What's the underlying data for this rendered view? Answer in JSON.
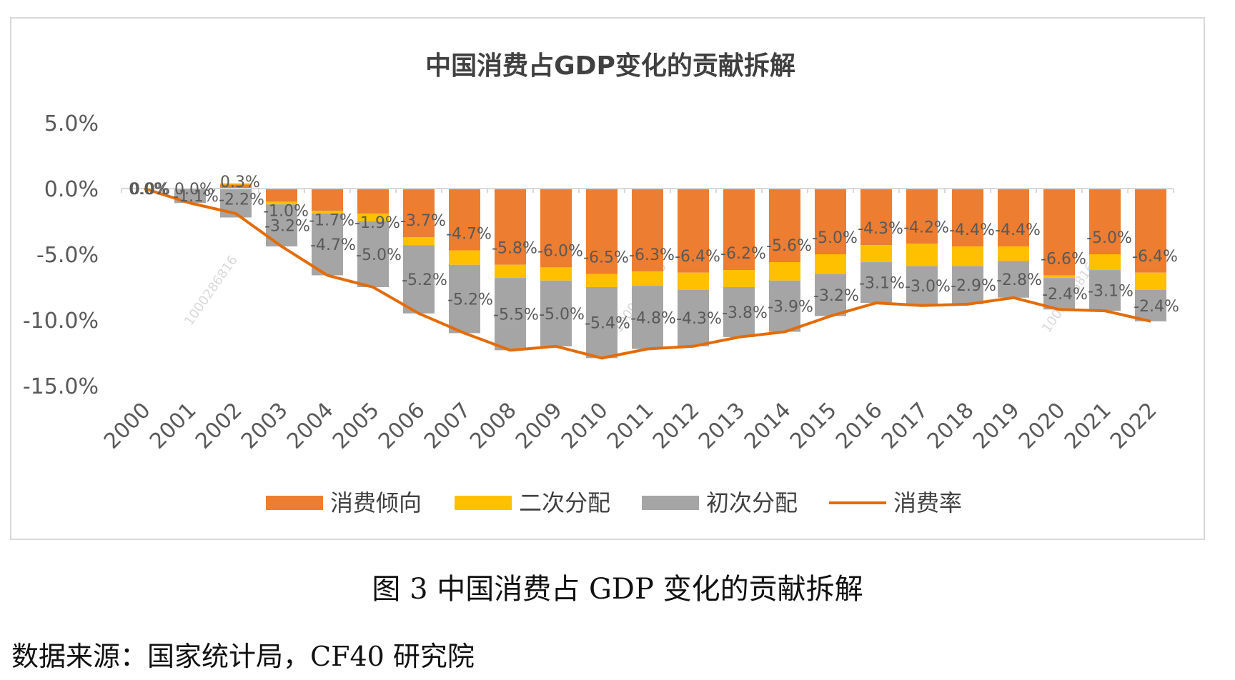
{
  "caption": "图 3 中国消费占 GDP 变化的贡献拆解",
  "source": "数据来源：国家统计局，CF40 研究院",
  "watermark": "1000286816",
  "chart_data": {
    "type": "bar",
    "title": "中国消费占GDP变化的贡献拆解",
    "stacked": true,
    "categories": [
      "2000",
      "2001",
      "2002",
      "2003",
      "2004",
      "2005",
      "2006",
      "2007",
      "2008",
      "2009",
      "2010",
      "2011",
      "2012",
      "2013",
      "2014",
      "2015",
      "2016",
      "2017",
      "2018",
      "2019",
      "2020",
      "2021",
      "2022"
    ],
    "series": [
      {
        "name": "消费倾向",
        "color": "#ED7D31",
        "values": [
          0.0,
          0.0,
          0.3,
          -1.0,
          -1.7,
          -1.9,
          -3.7,
          -4.7,
          -5.8,
          -6.0,
          -6.5,
          -6.3,
          -6.4,
          -6.2,
          -5.6,
          -5.0,
          -4.3,
          -4.2,
          -4.4,
          -4.4,
          -6.6,
          -5.0,
          -6.4
        ]
      },
      {
        "name": "二次分配",
        "color": "#FFC000",
        "values": [
          0.0,
          0.0,
          0.1,
          -0.2,
          -0.2,
          -0.6,
          -0.6,
          -1.1,
          -1.0,
          -1.0,
          -1.0,
          -1.1,
          -1.3,
          -1.3,
          -1.4,
          -1.5,
          -1.3,
          -1.7,
          -1.5,
          -1.1,
          -0.2,
          -1.2,
          -1.3
        ]
      },
      {
        "name": "初次分配",
        "color": "#A5A5A5",
        "values": [
          0.0,
          -1.1,
          -2.2,
          -3.2,
          -4.7,
          -5.0,
          -5.2,
          -5.2,
          -5.5,
          -5.0,
          -5.4,
          -4.8,
          -4.3,
          -3.8,
          -3.9,
          -3.2,
          -3.1,
          -3.0,
          -2.9,
          -2.8,
          -2.4,
          -3.1,
          -2.4
        ]
      },
      {
        "name": "消费率",
        "color": "#E36C09",
        "type": "line",
        "values": [
          0.0,
          -1.1,
          -1.9,
          -4.4,
          -6.6,
          -7.5,
          -9.5,
          -11.0,
          -12.3,
          -12.0,
          -12.9,
          -12.2,
          -12.0,
          -11.3,
          -10.9,
          -9.7,
          -8.7,
          -8.9,
          -8.8,
          -8.3,
          -9.2,
          -9.3,
          -10.1
        ]
      }
    ],
    "ylim": [
      -15,
      5
    ],
    "yticks": [
      5,
      0,
      -5,
      -10,
      -15
    ],
    "yticklabels": [
      "5.0%",
      "0.0%",
      "-5.0%",
      "-10.0%",
      "-15.0%"
    ],
    "legend_position": "bottom",
    "legend": [
      "消费倾向",
      "二次分配",
      "初次分配",
      "消费率"
    ]
  }
}
